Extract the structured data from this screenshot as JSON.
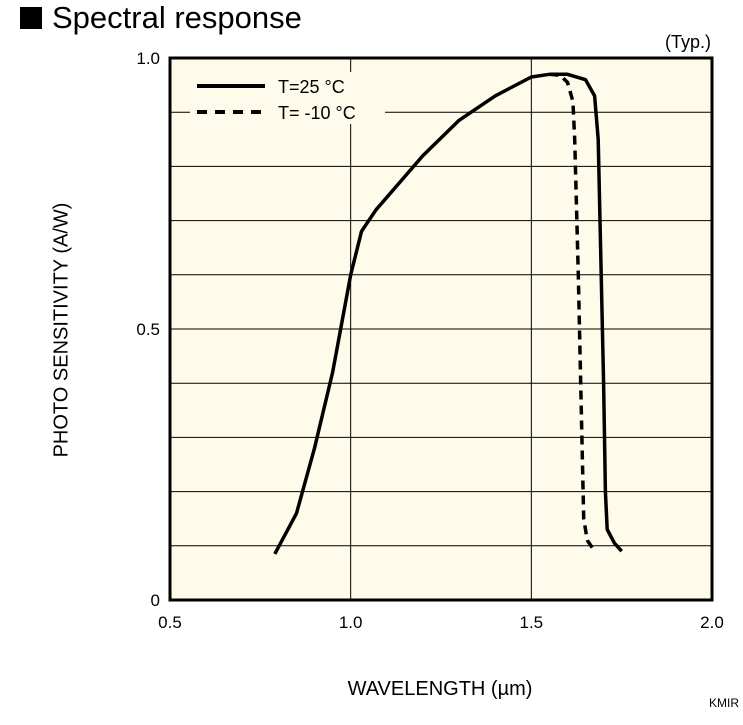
{
  "title": "Spectral response",
  "note": "(Typ.)",
  "footer": "KMIR",
  "chart_data": {
    "type": "line",
    "title": "Spectral response",
    "xlabel": "WAVELENGTH (µm)",
    "ylabel": "PHOTO SENSITIVITY (A/W)",
    "xlim": [
      0.5,
      2.0
    ],
    "ylim": [
      0,
      1.0
    ],
    "xticks": [
      "0.5",
      "1.0",
      "1.5",
      "2.0"
    ],
    "xtick_values": [
      0.5,
      1.0,
      1.5,
      2.0
    ],
    "yticks": [
      "0",
      "0.5",
      "1.0"
    ],
    "ytick_values": [
      0,
      0.5,
      1.0
    ],
    "grid": true,
    "legend_position": "top-left",
    "background": "#fffbea",
    "series": [
      {
        "name": "T=25 °C",
        "style": "solid",
        "x": [
          0.79,
          0.85,
          0.9,
          0.95,
          1.0,
          1.03,
          1.07,
          1.2,
          1.3,
          1.4,
          1.5,
          1.55,
          1.6,
          1.65,
          1.675,
          1.685,
          1.69,
          1.7,
          1.705,
          1.71,
          1.73,
          1.75
        ],
        "y": [
          0.085,
          0.16,
          0.28,
          0.42,
          0.6,
          0.68,
          0.72,
          0.82,
          0.885,
          0.93,
          0.965,
          0.97,
          0.97,
          0.96,
          0.93,
          0.85,
          0.7,
          0.4,
          0.2,
          0.13,
          0.105,
          0.09
        ]
      },
      {
        "name": "T= -10 °C",
        "style": "dashed",
        "x": [
          1.55,
          1.58,
          1.6,
          1.615,
          1.62,
          1.63,
          1.64,
          1.645,
          1.655,
          1.67
        ],
        "y": [
          0.97,
          0.968,
          0.955,
          0.92,
          0.85,
          0.6,
          0.3,
          0.15,
          0.11,
          0.095
        ]
      }
    ]
  }
}
